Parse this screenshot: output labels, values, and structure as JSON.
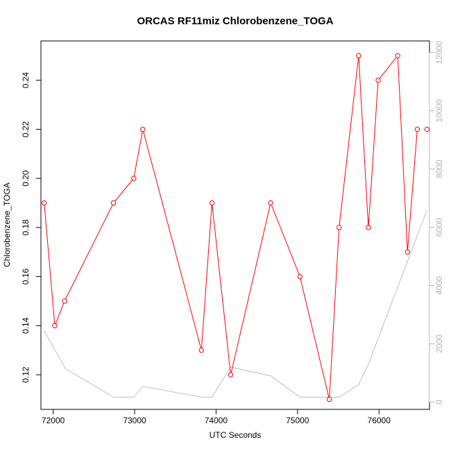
{
  "chart_data": {
    "type": "line",
    "title": "ORCAS RF11miz Chlorobenzene_TOGA",
    "xlabel": "UTC Seconds",
    "ylabel": "Chlorobenzene_TOGA",
    "xlim": [
      71850,
      76620
    ],
    "ylim": [
      0.1059,
      0.256
    ],
    "y2lim": [
      -250,
      12400
    ],
    "x_ticks": [
      72000,
      73000,
      74000,
      75000,
      76000
    ],
    "y_ticks": [
      0.12,
      0.14,
      0.16,
      0.18,
      0.2,
      0.22,
      0.24
    ],
    "y2_ticks": [
      0,
      2000,
      4000,
      6000,
      8000,
      10000,
      12000
    ],
    "series": [
      {
        "color": "#ff0000",
        "axis": "left",
        "marker": "open-circle",
        "x": [
          71890,
          72020,
          72140,
          72740,
          72990,
          73100,
          73820,
          73950,
          74180,
          74670,
          75030,
          75390,
          75510,
          75750,
          75870,
          75990,
          76230,
          76350,
          76470,
          76590
        ],
        "y": [
          0.19,
          0.14,
          0.15,
          0.19,
          0.2,
          0.22,
          0.13,
          0.19,
          0.12,
          0.19,
          0.16,
          0.11,
          0.18,
          0.25,
          0.18,
          0.24,
          0.25,
          0.17,
          0.22,
          0.22
        ],
        "break_before_index": [
          19
        ]
      },
      {
        "color": "#bebebe",
        "axis": "right",
        "marker": "none",
        "x": [
          71890,
          72150,
          72740,
          72990,
          73100,
          73820,
          73950,
          74180,
          74670,
          75030,
          75390,
          75510,
          75750,
          75870,
          76590
        ],
        "y": [
          2450,
          1150,
          170,
          170,
          540,
          170,
          170,
          1200,
          900,
          170,
          170,
          170,
          600,
          1300,
          6600
        ]
      }
    ],
    "grid": false,
    "legend": "none"
  }
}
